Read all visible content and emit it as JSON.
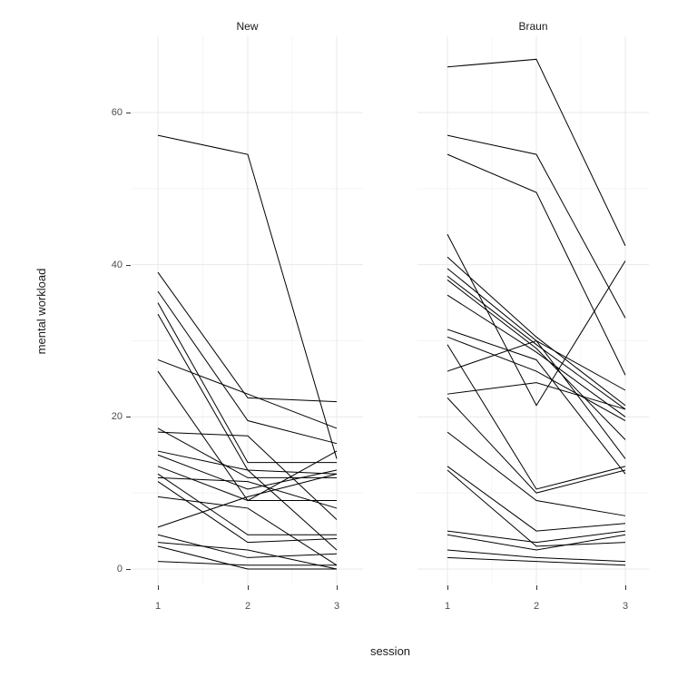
{
  "chart_data": {
    "type": "line",
    "title": "",
    "xlabel": "session",
    "ylabel": "mental workload",
    "x": [
      1,
      2,
      3
    ],
    "x_tick_labels": [
      "1",
      "2",
      "3"
    ],
    "y_ticks": [
      0,
      20,
      40,
      60
    ],
    "y_minor_ticks": [
      10,
      30,
      50
    ],
    "ylim": [
      -2,
      70
    ],
    "legend": "none",
    "grid": "on",
    "line_color": "#000000",
    "major_grid_color": "#e9e9e9",
    "minor_grid_color": "#f5f5f5",
    "facets": [
      {
        "label": "New",
        "series": [
          {
            "values": [
              57,
              54.5,
              14.5
            ]
          },
          {
            "values": [
              39,
              22.5,
              22
            ]
          },
          {
            "values": [
              36.5,
              19.5,
              16.5
            ]
          },
          {
            "values": [
              35,
              14,
              14
            ]
          },
          {
            "values": [
              33.5,
              13,
              12.5
            ]
          },
          {
            "values": [
              27.5,
              23,
              18.5
            ]
          },
          {
            "values": [
              26,
              9,
              9
            ]
          },
          {
            "values": [
              18.5,
              12,
              12
            ]
          },
          {
            "values": [
              18,
              17.5,
              6.5
            ]
          },
          {
            "values": [
              15.5,
              13,
              2.5
            ]
          },
          {
            "values": [
              15,
              10.5,
              13
            ]
          },
          {
            "values": [
              13.5,
              9,
              15.5
            ]
          },
          {
            "values": [
              12.5,
              4.5,
              4.5
            ]
          },
          {
            "values": [
              12,
              11.5,
              8
            ]
          },
          {
            "values": [
              11.5,
              3.5,
              4
            ]
          },
          {
            "values": [
              9.5,
              8,
              0.5
            ]
          },
          {
            "values": [
              5.5,
              9.5,
              12.5
            ]
          },
          {
            "values": [
              4.5,
              1.5,
              2
            ]
          },
          {
            "values": [
              3.5,
              2.5,
              0
            ]
          },
          {
            "values": [
              3,
              0,
              0
            ]
          },
          {
            "values": [
              1,
              0.5,
              0.5
            ]
          }
        ]
      },
      {
        "label": "Braun",
        "series": [
          {
            "values": [
              66,
              67,
              42.5
            ]
          },
          {
            "values": [
              57,
              54.5,
              33
            ]
          },
          {
            "values": [
              54.5,
              49.5,
              25.5
            ]
          },
          {
            "values": [
              44,
              21.5,
              40.5
            ]
          },
          {
            "values": [
              41,
              30.5,
              21.5
            ]
          },
          {
            "values": [
              39.5,
              30,
              14.5
            ]
          },
          {
            "values": [
              38.5,
              29.5,
              21
            ]
          },
          {
            "values": [
              38,
              29,
              17
            ]
          },
          {
            "values": [
              36,
              28.5,
              20
            ]
          },
          {
            "values": [
              31.5,
              27.5,
              12.5
            ]
          },
          {
            "values": [
              30.5,
              26,
              19.5
            ]
          },
          {
            "values": [
              29.5,
              10.5,
              13.5
            ]
          },
          {
            "values": [
              26,
              30,
              23.5
            ]
          },
          {
            "values": [
              23,
              24.5,
              21
            ]
          },
          {
            "values": [
              22.5,
              10,
              13
            ]
          },
          {
            "values": [
              18,
              9,
              7
            ]
          },
          {
            "values": [
              13.5,
              5,
              6
            ]
          },
          {
            "values": [
              13,
              3,
              3.5
            ]
          },
          {
            "values": [
              5,
              3.5,
              5
            ]
          },
          {
            "values": [
              4.5,
              2.5,
              4.5
            ]
          },
          {
            "values": [
              2.5,
              1.5,
              1
            ]
          },
          {
            "values": [
              1.5,
              1,
              0.5
            ]
          }
        ]
      }
    ]
  }
}
